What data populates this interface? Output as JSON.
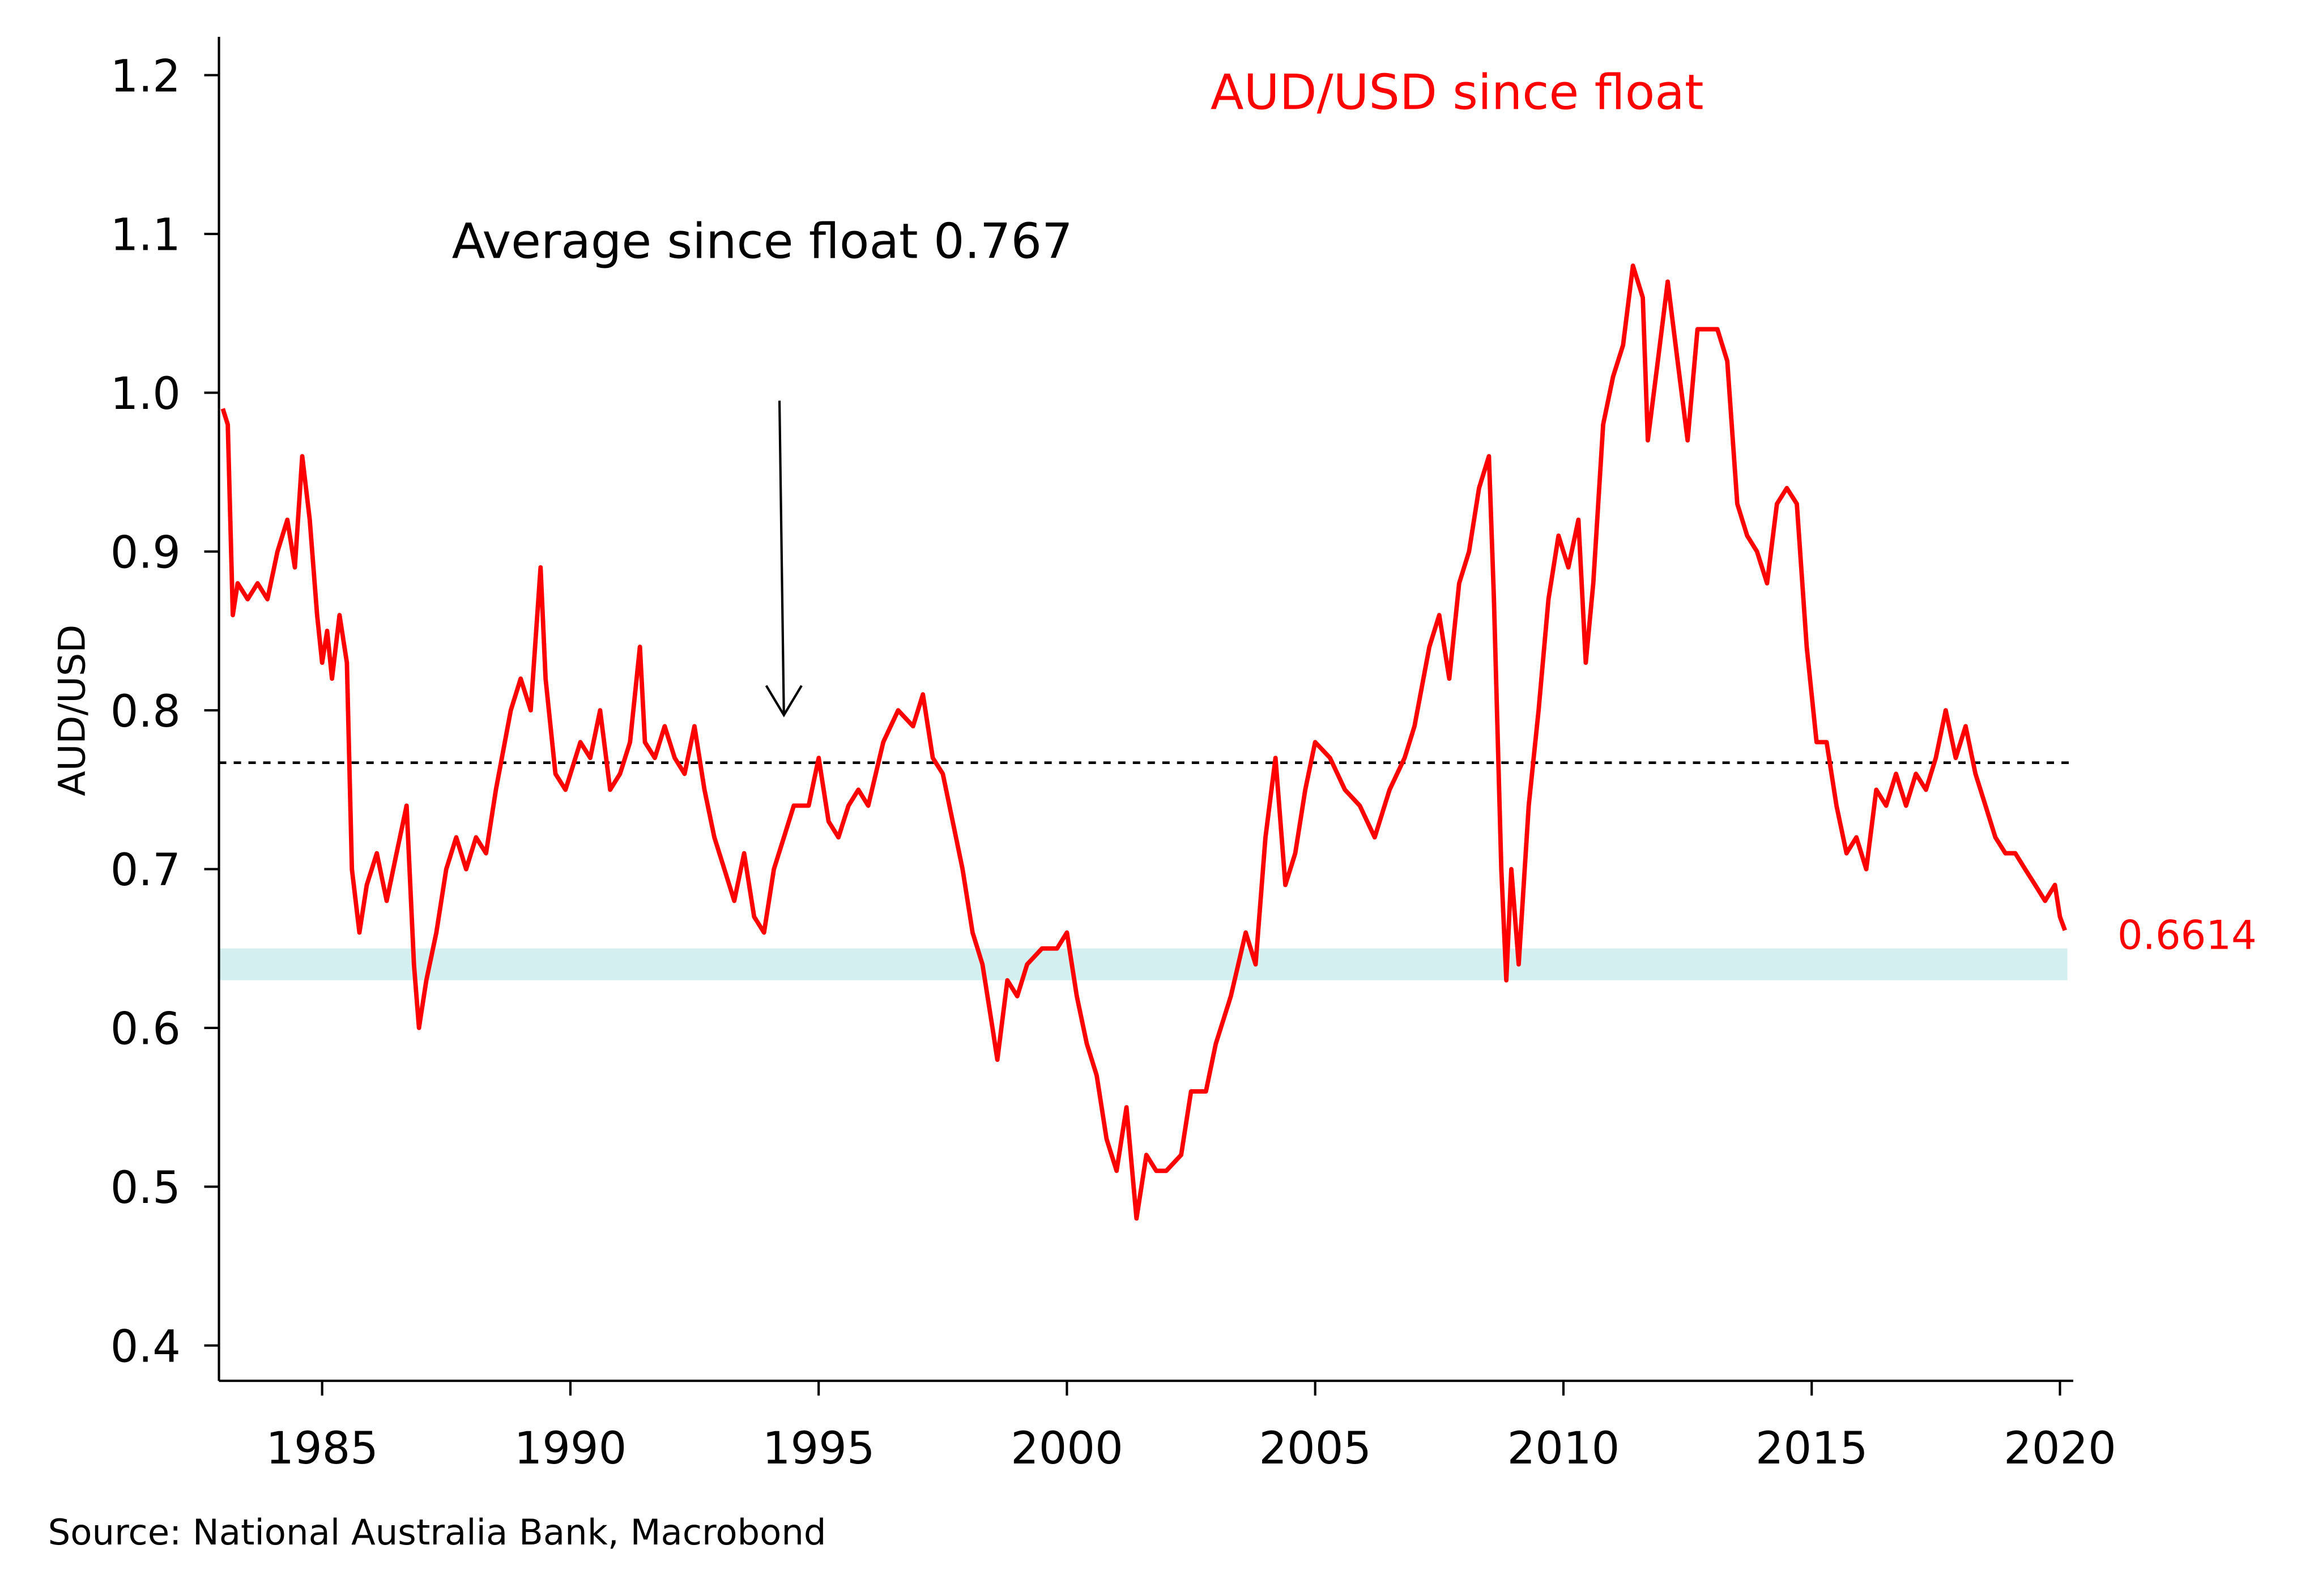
{
  "chart_data": {
    "type": "line",
    "title": "AUD/USD since float",
    "ylabel": "AUD/USD",
    "xlabel": "",
    "xlim": [
      1982.9,
      2020.25
    ],
    "ylim": [
      0.375,
      1.225
    ],
    "yticks": [
      "0.4",
      "0.5",
      "0.6",
      "0.7",
      "0.8",
      "0.9",
      "1.0",
      "1.1",
      "1.2"
    ],
    "ytick_values": [
      0.4,
      0.5,
      0.6,
      0.7,
      0.8,
      0.9,
      1.0,
      1.1,
      1.2
    ],
    "xticks": [
      "1985",
      "1990",
      "1995",
      "2000",
      "2005",
      "2010",
      "2015",
      "2020"
    ],
    "xtick_values": [
      1985,
      1990,
      1995,
      2000,
      2005,
      2010,
      2015,
      2020
    ],
    "grid": false,
    "average": {
      "value": 0.767,
      "label": "Average since float 0.767"
    },
    "band": [
      0.63,
      0.65
    ],
    "last_value_label": "0.6614",
    "arrow": {
      "x": 1994.3,
      "from": 0.995,
      "to": 0.797
    },
    "source": "Source: National Australia Bank, Macrobond",
    "colors": {
      "series": "#ff0000",
      "band": "#d4efef",
      "average": "#000000"
    },
    "series": [
      {
        "name": "AUD/USD",
        "x": [
          1983.0,
          1983.1,
          1983.2,
          1983.3,
          1983.5,
          1983.7,
          1983.9,
          1984.1,
          1984.3,
          1984.45,
          1984.6,
          1984.75,
          1984.9,
          1985.0,
          1985.1,
          1985.2,
          1985.35,
          1985.5,
          1985.6,
          1985.75,
          1985.9,
          1986.1,
          1986.3,
          1986.5,
          1986.7,
          1986.85,
          1986.95,
          1987.1,
          1987.3,
          1987.5,
          1987.7,
          1987.9,
          1988.1,
          1988.3,
          1988.5,
          1988.8,
          1989.0,
          1989.2,
          1989.4,
          1989.5,
          1989.7,
          1989.9,
          1990.2,
          1990.4,
          1990.6,
          1990.8,
          1991.0,
          1991.2,
          1991.4,
          1991.5,
          1991.7,
          1991.9,
          1992.1,
          1992.3,
          1992.5,
          1992.7,
          1992.9,
          1993.1,
          1993.3,
          1993.5,
          1993.7,
          1993.9,
          1994.1,
          1994.3,
          1994.5,
          1994.8,
          1995.0,
          1995.2,
          1995.4,
          1995.6,
          1995.8,
          1996.0,
          1996.3,
          1996.6,
          1996.9,
          1997.1,
          1997.3,
          1997.5,
          1997.7,
          1997.9,
          1998.1,
          1998.3,
          1998.5,
          1998.6,
          1998.8,
          1999.0,
          1999.2,
          1999.5,
          1999.8,
          2000.0,
          2000.2,
          2000.4,
          2000.6,
          2000.8,
          2001.0,
          2001.2,
          2001.4,
          2001.6,
          2001.8,
          2002.0,
          2002.3,
          2002.5,
          2002.8,
          2003.0,
          2003.3,
          2003.6,
          2003.8,
          2004.0,
          2004.2,
          2004.4,
          2004.6,
          2004.8,
          2005.0,
          2005.3,
          2005.6,
          2005.9,
          2006.2,
          2006.5,
          2006.8,
          2007.0,
          2007.3,
          2007.5,
          2007.7,
          2007.9,
          2008.1,
          2008.3,
          2008.5,
          2008.6,
          2008.75,
          2008.85,
          2008.95,
          2009.1,
          2009.3,
          2009.5,
          2009.7,
          2009.9,
          2010.1,
          2010.3,
          2010.45,
          2010.6,
          2010.8,
          2011.0,
          2011.2,
          2011.4,
          2011.6,
          2011.7,
          2011.9,
          2012.1,
          2012.3,
          2012.5,
          2012.7,
          2012.9,
          2013.1,
          2013.3,
          2013.5,
          2013.7,
          2013.9,
          2014.1,
          2014.3,
          2014.5,
          2014.7,
          2014.9,
          2015.1,
          2015.3,
          2015.5,
          2015.7,
          2015.9,
          2016.1,
          2016.3,
          2016.5,
          2016.7,
          2016.9,
          2017.1,
          2017.3,
          2017.5,
          2017.7,
          2017.9,
          2018.1,
          2018.3,
          2018.5,
          2018.7,
          2018.9,
          2019.1,
          2019.3,
          2019.5,
          2019.7,
          2019.9,
          2020.0,
          2020.1
        ],
        "values": [
          0.99,
          0.98,
          0.86,
          0.88,
          0.87,
          0.88,
          0.87,
          0.9,
          0.92,
          0.89,
          0.96,
          0.92,
          0.86,
          0.83,
          0.85,
          0.82,
          0.86,
          0.83,
          0.7,
          0.66,
          0.69,
          0.71,
          0.68,
          0.71,
          0.74,
          0.64,
          0.6,
          0.63,
          0.66,
          0.7,
          0.72,
          0.7,
          0.72,
          0.71,
          0.75,
          0.8,
          0.82,
          0.8,
          0.89,
          0.82,
          0.76,
          0.75,
          0.78,
          0.77,
          0.8,
          0.75,
          0.76,
          0.78,
          0.84,
          0.78,
          0.77,
          0.79,
          0.77,
          0.76,
          0.79,
          0.75,
          0.72,
          0.7,
          0.68,
          0.71,
          0.67,
          0.66,
          0.7,
          0.72,
          0.74,
          0.74,
          0.77,
          0.73,
          0.72,
          0.74,
          0.75,
          0.74,
          0.78,
          0.8,
          0.79,
          0.81,
          0.77,
          0.76,
          0.73,
          0.7,
          0.66,
          0.64,
          0.6,
          0.58,
          0.63,
          0.62,
          0.64,
          0.65,
          0.65,
          0.66,
          0.62,
          0.59,
          0.57,
          0.53,
          0.51,
          0.55,
          0.48,
          0.52,
          0.51,
          0.51,
          0.52,
          0.56,
          0.56,
          0.59,
          0.62,
          0.66,
          0.64,
          0.72,
          0.77,
          0.69,
          0.71,
          0.75,
          0.78,
          0.77,
          0.75,
          0.74,
          0.72,
          0.75,
          0.77,
          0.79,
          0.84,
          0.86,
          0.82,
          0.88,
          0.9,
          0.94,
          0.96,
          0.87,
          0.7,
          0.63,
          0.7,
          0.64,
          0.74,
          0.8,
          0.87,
          0.91,
          0.89,
          0.92,
          0.83,
          0.88,
          0.98,
          1.01,
          1.03,
          1.08,
          1.06,
          0.97,
          1.02,
          1.07,
          1.02,
          0.97,
          1.04,
          1.04,
          1.04,
          1.02,
          0.93,
          0.91,
          0.9,
          0.88,
          0.93,
          0.94,
          0.93,
          0.84,
          0.78,
          0.78,
          0.74,
          0.71,
          0.72,
          0.7,
          0.75,
          0.74,
          0.76,
          0.74,
          0.76,
          0.75,
          0.77,
          0.8,
          0.77,
          0.79,
          0.76,
          0.74,
          0.72,
          0.71,
          0.71,
          0.7,
          0.69,
          0.68,
          0.69,
          0.67,
          0.6614
        ]
      }
    ]
  }
}
